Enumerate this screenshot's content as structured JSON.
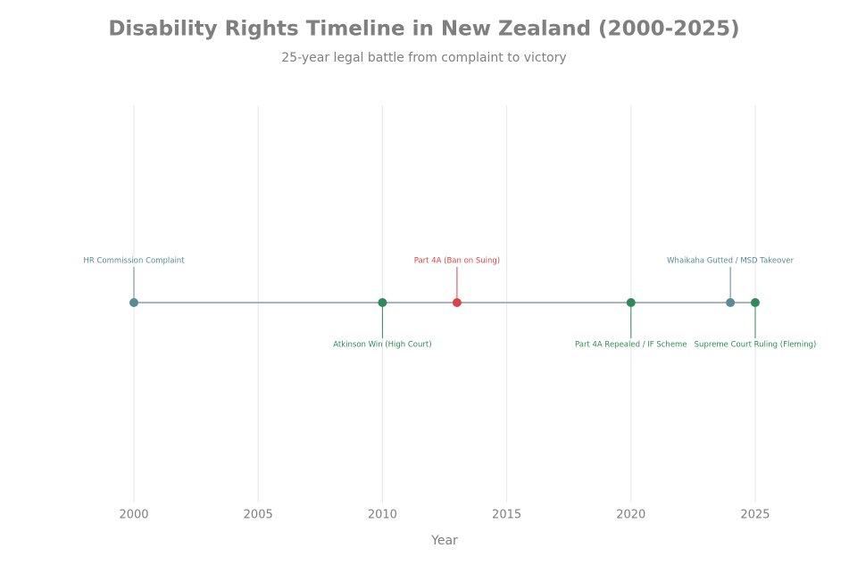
{
  "chart_data": {
    "type": "timeline",
    "title": "Disability Rights Timeline in New Zealand (2000-2025)",
    "subtitle": "25-year legal battle from complaint to victory",
    "x_label": "Year",
    "x": [
      2000,
      2010,
      2013,
      2020,
      2024,
      2025
    ],
    "labels": [
      "HR Commission Complaint",
      "Atkinson Win (High Court)",
      "Part 4A (Ban on Suing)",
      "Part 4A Repealed / IF Scheme",
      "Whaikaha Gutted / MSD Takeover",
      "Supreme Court Ruling (Fleming)"
    ],
    "colors": [
      "#5a8a95",
      "#2e8b57",
      "#d9434a",
      "#2e8b57",
      "#5a8a95",
      "#2e8b57"
    ],
    "line_color": "#8a9bb0",
    "xlim": [
      1997,
      2028
    ],
    "xticks": [
      2000,
      2005,
      2010,
      2015,
      2020,
      2025
    ],
    "grid": true
  }
}
